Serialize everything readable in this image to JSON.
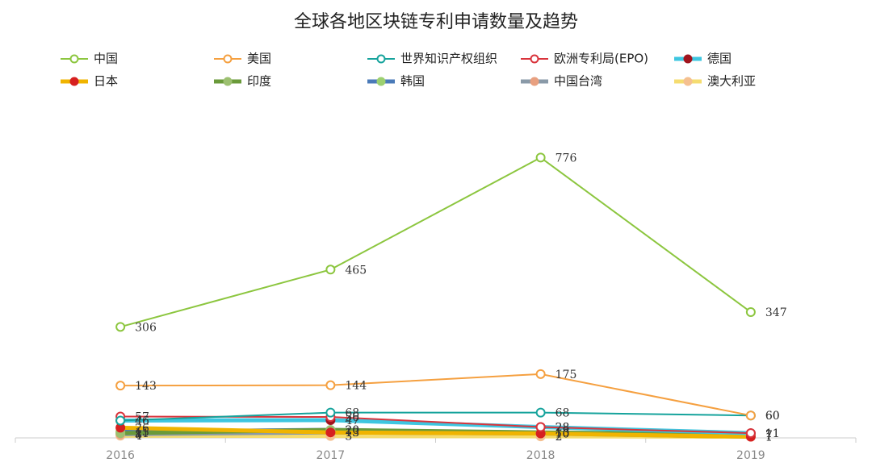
{
  "chart_data": {
    "type": "line",
    "title": "全球各地区块链专利申请数量及趋势",
    "categories": [
      "2016",
      "2017",
      "2018",
      "2019"
    ],
    "ylim": [
      0,
      900
    ],
    "series": [
      {
        "name": "中国",
        "color": "#8cc63f",
        "marker_color": "#8cc63f",
        "marker": "open",
        "values": [
          306,
          465,
          776,
          347
        ]
      },
      {
        "name": "美国",
        "color": "#f5a040",
        "marker_color": "#f5a040",
        "marker": "open",
        "values": [
          143,
          144,
          175,
          60
        ]
      },
      {
        "name": "世界知识产权组织",
        "color": "#16a39c",
        "marker_color": "#16a39c",
        "marker": "open",
        "values": [
          46,
          68,
          68,
          60
        ]
      },
      {
        "name": "欧洲专利局(EPO)",
        "color": "#d9343c",
        "marker_color": "#d9343c",
        "marker": "open",
        "values": [
          57,
          56,
          28,
          11
        ]
      },
      {
        "name": "德国",
        "color": "#3ec6e0",
        "marker_color": "#a0141e",
        "marker": "filled",
        "values": [
          46,
          47,
          28,
          11
        ]
      },
      {
        "name": "日本",
        "color": "#f0b400",
        "marker_color": "#d62020",
        "marker": "filled",
        "values": [
          26,
          13,
          10,
          1
        ]
      },
      {
        "name": "印度",
        "color": "#6a9a3a",
        "marker_color": "#9cc070",
        "marker": "filled",
        "values": [
          11,
          20,
          13,
          7
        ]
      },
      {
        "name": "韩国",
        "color": "#4a7ab8",
        "marker_color": "#9cd070",
        "marker": "filled",
        "values": [
          15,
          20,
          10,
          7
        ]
      },
      {
        "name": "中国台湾",
        "color": "#8a9aa8",
        "marker_color": "#e8a080",
        "marker": "filled",
        "values": [
          8,
          13,
          10,
          1
        ]
      },
      {
        "name": "澳大利亚",
        "color": "#f5dc70",
        "marker_color": "#f5c090",
        "marker": "filled",
        "values": [
          4,
          3,
          2,
          1
        ]
      }
    ]
  }
}
